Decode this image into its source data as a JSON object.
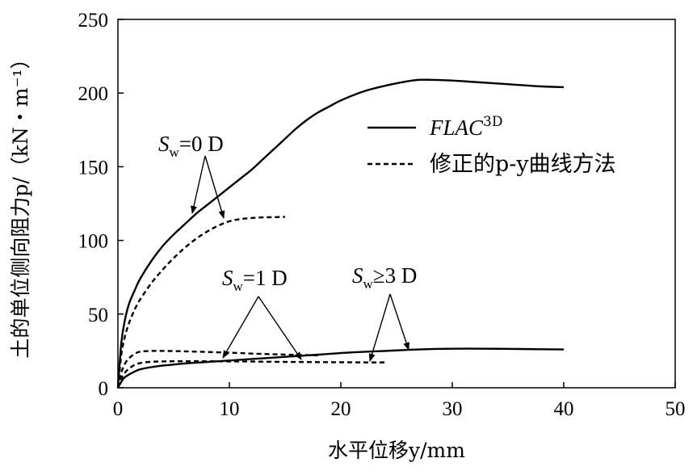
{
  "chart_data": {
    "type": "line",
    "xlabel": "水平位移y/mm",
    "ylabel": "土的单位侧向阻力p/（kN・m⁻¹）",
    "xlim": [
      0,
      50
    ],
    "ylim": [
      0,
      250
    ],
    "xticks": [
      "0",
      "10",
      "20",
      "30",
      "40",
      "50"
    ],
    "yticks": [
      "0",
      "50",
      "100",
      "150",
      "200",
      "250"
    ],
    "grid": false,
    "legend_position": "top-right",
    "legend": [
      {
        "label": "FLAC",
        "sup": "3D",
        "style": "solid"
      },
      {
        "label": "修正的p-y曲线方法",
        "style": "dashed"
      }
    ],
    "series": [
      {
        "group": "Sw=0 D",
        "method": "FLAC3D",
        "style": "solid",
        "x": [
          0,
          0.3,
          0.6,
          1,
          1.5,
          2,
          3,
          4,
          5,
          6,
          7,
          8,
          9,
          10,
          11,
          12,
          13,
          14,
          15,
          16,
          17,
          18,
          19,
          20,
          22,
          24,
          26,
          27,
          28,
          30,
          32,
          34,
          36,
          38,
          40
        ],
        "y": [
          0,
          30,
          45,
          57,
          66,
          74,
          86,
          96,
          104,
          111,
          118,
          124,
          130,
          136,
          142,
          148,
          155,
          162,
          169,
          176,
          182,
          187,
          191,
          195,
          201,
          205,
          208,
          209,
          209,
          208.5,
          207.5,
          206.5,
          205.5,
          204.5,
          204
        ]
      },
      {
        "group": "Sw=0 D",
        "method": "修正的p-y曲线方法",
        "style": "dashed",
        "x": [
          0,
          0.3,
          0.6,
          1,
          1.5,
          2,
          3,
          4,
          5,
          6,
          7,
          8,
          9,
          10,
          11,
          12,
          13,
          14,
          15
        ],
        "y": [
          0,
          22,
          34,
          44,
          53,
          60,
          71,
          80,
          88,
          95,
          101,
          106,
          110,
          113,
          114.5,
          115.2,
          115.6,
          115.8,
          116
        ]
      },
      {
        "group": "Sw≥3 D",
        "method": "FLAC3D",
        "style": "solid",
        "x": [
          0,
          0.3,
          0.6,
          1,
          1.5,
          2,
          3,
          4,
          6,
          8,
          10,
          12,
          15,
          18,
          21,
          24,
          27,
          30,
          33,
          36,
          40
        ],
        "y": [
          0,
          4,
          7,
          9,
          11,
          12.5,
          14,
          15,
          16.5,
          17.5,
          18.5,
          19.5,
          21,
          22.5,
          24,
          25,
          26,
          26.5,
          26.5,
          26.3,
          26
        ]
      },
      {
        "group": "Sw=1 D",
        "method": "修正的p-y曲线方法",
        "style": "dashed",
        "x": [
          0,
          0.3,
          0.6,
          1,
          1.5,
          2,
          3,
          4,
          6,
          8,
          10,
          12,
          14,
          16,
          18
        ],
        "y": [
          0,
          10,
          16,
          20,
          23,
          24.5,
          25,
          25,
          24.7,
          24.3,
          23.8,
          23.2,
          22.7,
          22.3,
          22
        ]
      },
      {
        "group": "Sw≥3 D",
        "method": "修正的p-y曲线方法",
        "style": "dashed",
        "x": [
          0,
          0.3,
          0.6,
          1,
          1.5,
          2,
          3,
          4,
          6,
          8,
          10,
          12,
          14,
          16,
          18,
          20,
          22,
          24
        ],
        "y": [
          0,
          6,
          10,
          13,
          15.5,
          16.8,
          17.6,
          17.9,
          18,
          18,
          17.9,
          17.8,
          17.6,
          17.5,
          17.4,
          17.3,
          17.2,
          17.2
        ]
      }
    ],
    "annotations": [
      {
        "main": "S",
        "sub": "w",
        "rest": "=0 D"
      },
      {
        "main": "S",
        "sub": "w",
        "rest": "=1 D"
      },
      {
        "main": "S",
        "sub": "w",
        "rest": "≥3 D"
      }
    ]
  }
}
